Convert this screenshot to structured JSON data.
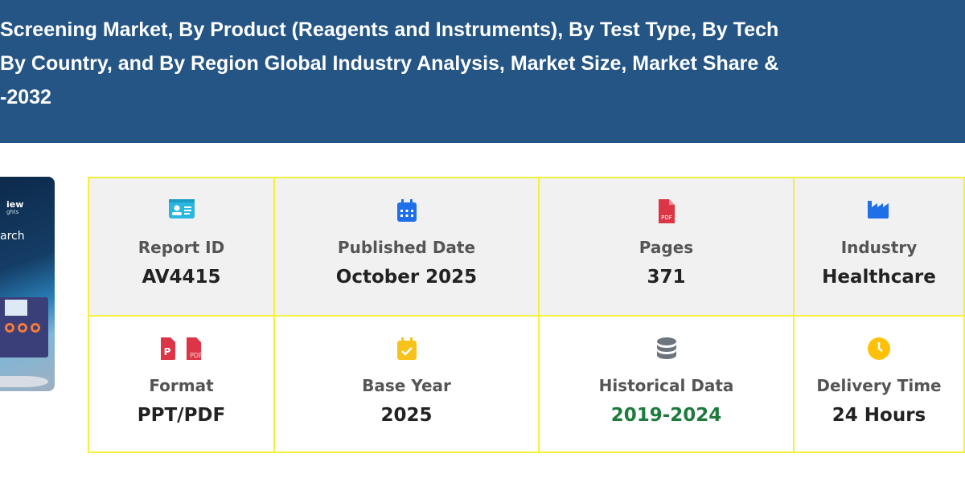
{
  "header": {
    "title_lines": [
      "Screening Market, By Product (Reagents and Instruments), By Test Type, By Tech",
      "By Country, and By Region Global Industry Analysis, Market Size, Market Share &",
      "-2032"
    ]
  },
  "cover": {
    "line1": "iew",
    "line2": "ghts",
    "line3": "arch"
  },
  "details": [
    {
      "icon": "id-card-icon",
      "label": "Report ID",
      "value": "AV4415",
      "color": "#29b6e0"
    },
    {
      "icon": "calendar-icon",
      "label": "Published Date",
      "value": "October 2025",
      "color": "#1e6fe8"
    },
    {
      "icon": "pdf-file-icon",
      "label": "Pages",
      "value": "371",
      "color": "#dc3545"
    },
    {
      "icon": "industry-icon",
      "label": "Industry",
      "value": "Healthcare",
      "color": "#1e6fe8"
    },
    {
      "icon": "ppt-pdf-icons",
      "label": "Format",
      "value": "PPT/PDF",
      "color": "#dc3545"
    },
    {
      "icon": "calendar-check-icon",
      "label": "Base Year",
      "value": "2025",
      "color": "#f7c21b"
    },
    {
      "icon": "database-icon",
      "label": "Historical Data",
      "value": "2019-2024",
      "color": "#6c757d",
      "value_color": "#1f7a3e"
    },
    {
      "icon": "clock-icon",
      "label": "Delivery Time",
      "value": "24 Hours",
      "color": "#ffc107"
    }
  ]
}
